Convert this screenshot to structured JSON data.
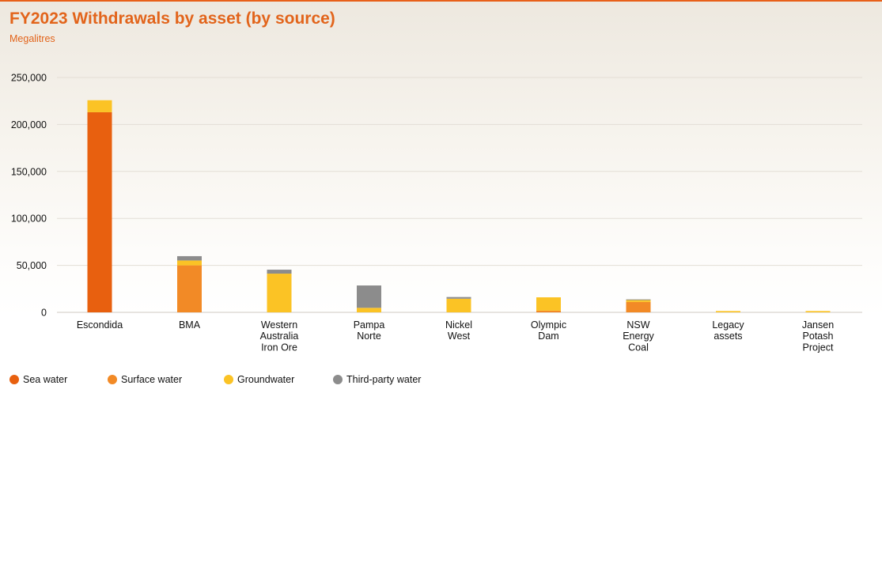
{
  "chart_data": {
    "type": "bar",
    "stacked": true,
    "title": "FY2023 Withdrawals by asset (by source)",
    "subtitle": "Megalitres",
    "ylim": [
      0,
      250000
    ],
    "yticks": [
      "0",
      "50,000",
      "100,000",
      "150,000",
      "200,000",
      "250,000"
    ],
    "ytick_values": [
      0,
      50000,
      100000,
      150000,
      200000,
      250000
    ],
    "grid": true,
    "legend_position": "bottom-left",
    "categories": [
      [
        "Escondida"
      ],
      [
        "BMA"
      ],
      [
        "Western",
        "Australia",
        "Iron Ore"
      ],
      [
        "Pampa",
        "Norte"
      ],
      [
        "Nickel",
        "West"
      ],
      [
        "Olympic",
        "Dam"
      ],
      [
        "NSW",
        "Energy",
        "Coal"
      ],
      [
        "Legacy",
        "assets"
      ],
      [
        "Jansen",
        "Potash",
        "Project"
      ]
    ],
    "series": [
      {
        "name": "Sea water",
        "color": "#e8600f",
        "values": [
          213000,
          0,
          0,
          0,
          0,
          0,
          0,
          0,
          0
        ]
      },
      {
        "name": "Surface water",
        "color": "#f28a26",
        "values": [
          0,
          50000,
          0,
          0,
          0,
          1800,
          11000,
          0,
          0
        ]
      },
      {
        "name": "Groundwater",
        "color": "#fbc325",
        "values": [
          12800,
          5200,
          41200,
          4800,
          14500,
          14200,
          2000,
          1400,
          1400
        ]
      },
      {
        "name": "Third-party water",
        "color": "#8c8c8c",
        "values": [
          0,
          4600,
          4200,
          23800,
          1800,
          0,
          800,
          0,
          0
        ]
      }
    ]
  }
}
